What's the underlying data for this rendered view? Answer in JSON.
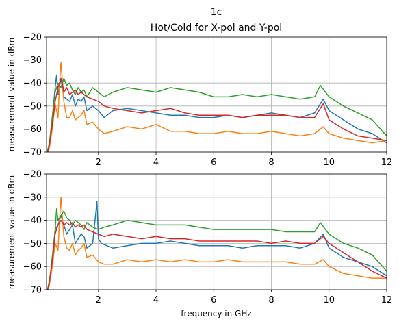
{
  "figure": {
    "title_line1": "1c",
    "title_line2": "Hot/Cold for X-pol and Y-pol",
    "xlabel": "frequency in GHz",
    "ylabel": "measurement value in dBm"
  },
  "chart_data": [
    {
      "type": "line",
      "title": "1c Hot/Cold for X-pol and Y-pol",
      "xlabel": "",
      "ylabel": "measurement value in dBm",
      "xlim": [
        0.2,
        12
      ],
      "ylim": [
        -70,
        -20
      ],
      "xticks": [
        2,
        4,
        6,
        8,
        10,
        12
      ],
      "yticks": [
        -70,
        -60,
        -50,
        -40,
        -30,
        -20
      ],
      "grid": true,
      "series": [
        {
          "color": "#1f77b4",
          "x": [
            0.2,
            0.3,
            0.4,
            0.5,
            0.55,
            0.6,
            0.7,
            0.8,
            0.9,
            1.0,
            1.1,
            1.2,
            1.3,
            1.4,
            1.5,
            1.6,
            1.8,
            2.0,
            2.2,
            2.5,
            3,
            3.5,
            4,
            4.5,
            5,
            5.5,
            6,
            6.5,
            7,
            7.5,
            8,
            8.5,
            9,
            9.5,
            9.8,
            10,
            10.5,
            11,
            11.5,
            12
          ],
          "y": [
            -72,
            -68,
            -55,
            -42,
            -36.5,
            -45,
            -38,
            -46,
            -47,
            -48,
            -45,
            -50,
            -47,
            -48,
            -46,
            -52,
            -50,
            -52,
            -55,
            -52,
            -51,
            -52,
            -53,
            -54,
            -54,
            -55,
            -55,
            -54,
            -55,
            -54,
            -53,
            -54,
            -55,
            -53,
            -47,
            -52,
            -56,
            -60,
            -62,
            -66
          ]
        },
        {
          "color": "#ff7f0e",
          "x": [
            0.2,
            0.3,
            0.4,
            0.5,
            0.6,
            0.65,
            0.7,
            0.8,
            0.9,
            1.0,
            1.1,
            1.2,
            1.3,
            1.4,
            1.5,
            1.6,
            1.8,
            2.0,
            2.2,
            2.5,
            3,
            3.5,
            4,
            4.5,
            5,
            5.5,
            6,
            6.5,
            7,
            7.5,
            8,
            8.5,
            9,
            9.5,
            9.8,
            10,
            10.5,
            11,
            11.5,
            12
          ],
          "y": [
            -72,
            -68,
            -60,
            -49,
            -55,
            -40,
            -31,
            -48,
            -55,
            -55,
            -52,
            -56,
            -55,
            -54,
            -52,
            -58,
            -57,
            -60,
            -62,
            -61,
            -59,
            -60,
            -58,
            -61,
            -61,
            -62,
            -62,
            -61,
            -62,
            -62,
            -61,
            -62,
            -63,
            -62,
            -59,
            -62,
            -64,
            -65,
            -66,
            -65
          ]
        },
        {
          "color": "#2ca02c",
          "x": [
            0.2,
            0.3,
            0.4,
            0.5,
            0.6,
            0.7,
            0.8,
            0.9,
            1.0,
            1.1,
            1.2,
            1.3,
            1.4,
            1.5,
            1.6,
            1.8,
            2.0,
            2.2,
            2.5,
            3,
            3.5,
            4,
            4.5,
            5,
            5.5,
            6,
            6.5,
            7,
            7.5,
            8,
            8.5,
            9,
            9.5,
            9.7,
            10,
            10.5,
            11,
            11.5,
            12
          ],
          "y": [
            -71,
            -66,
            -55,
            -44,
            -40,
            -42,
            -38,
            -41,
            -40,
            -43,
            -45,
            -42,
            -44,
            -43,
            -46,
            -42,
            -44,
            -46,
            -44,
            -42,
            -43,
            -44,
            -42,
            -43,
            -44,
            -46,
            -46,
            -45,
            -46,
            -45,
            -46,
            -47,
            -46,
            -41,
            -46,
            -50,
            -53,
            -56,
            -63
          ]
        },
        {
          "color": "#d62728",
          "x": [
            0.2,
            0.3,
            0.4,
            0.5,
            0.6,
            0.7,
            0.75,
            0.8,
            0.9,
            1.0,
            1.1,
            1.2,
            1.3,
            1.4,
            1.5,
            1.6,
            1.8,
            2.0,
            2.2,
            2.5,
            3,
            3.5,
            4,
            4.5,
            5,
            5.5,
            6,
            6.5,
            7,
            7.5,
            8,
            8.5,
            9,
            9.5,
            9.8,
            10,
            10.5,
            11,
            11.5,
            12
          ],
          "y": [
            -72,
            -67,
            -58,
            -48,
            -42,
            -38,
            -40,
            -44,
            -42,
            -45,
            -44,
            -43,
            -45,
            -44,
            -45,
            -46,
            -47,
            -48,
            -50,
            -51,
            -52,
            -53,
            -52,
            -51,
            -53,
            -54,
            -54,
            -54,
            -55,
            -54,
            -54,
            -54,
            -55,
            -55,
            -49,
            -56,
            -60,
            -63,
            -64,
            -65
          ]
        }
      ]
    },
    {
      "type": "line",
      "title": "",
      "xlabel": "frequency in GHz",
      "ylabel": "measurement value in dBm",
      "xlim": [
        0.2,
        12
      ],
      "ylim": [
        -70,
        -20
      ],
      "xticks": [
        2,
        4,
        6,
        8,
        10,
        12
      ],
      "yticks": [
        -70,
        -60,
        -50,
        -40,
        -30,
        -20
      ],
      "grid": true,
      "series": [
        {
          "color": "#1f77b4",
          "x": [
            0.2,
            0.3,
            0.4,
            0.5,
            0.6,
            0.7,
            0.8,
            0.9,
            1.0,
            1.1,
            1.2,
            1.3,
            1.4,
            1.5,
            1.6,
            1.8,
            1.95,
            2.0,
            2.1,
            2.5,
            3,
            3.5,
            4,
            4.5,
            5,
            5.5,
            6,
            6.5,
            7,
            7.5,
            8,
            8.5,
            9,
            9.5,
            9.8,
            10,
            10.5,
            11,
            11.5,
            12
          ],
          "y": [
            -72,
            -68,
            -56,
            -44,
            -42,
            -38,
            -42,
            -46,
            -44,
            -42,
            -50,
            -48,
            -46,
            -47,
            -52,
            -50,
            -32,
            -48,
            -50,
            -52,
            -51,
            -50,
            -50,
            -49,
            -50,
            -51,
            -51,
            -51,
            -52,
            -51,
            -51,
            -51,
            -52,
            -50,
            -46,
            -52,
            -56,
            -58,
            -60,
            -64
          ]
        },
        {
          "color": "#ff7f0e",
          "x": [
            0.2,
            0.3,
            0.4,
            0.5,
            0.6,
            0.65,
            0.7,
            0.8,
            0.9,
            1.0,
            1.1,
            1.2,
            1.3,
            1.4,
            1.5,
            1.6,
            1.8,
            2.0,
            2.2,
            2.5,
            3,
            3.5,
            4,
            4.5,
            5,
            5.5,
            6,
            6.5,
            7,
            7.5,
            8,
            8.5,
            9,
            9.5,
            9.8,
            10,
            10.5,
            11,
            11.5,
            12
          ],
          "y": [
            -72,
            -68,
            -60,
            -50,
            -53,
            -40,
            -30,
            -47,
            -52,
            -53,
            -50,
            -55,
            -53,
            -52,
            -50,
            -56,
            -55,
            -58,
            -59,
            -59,
            -57,
            -58,
            -57,
            -58,
            -57,
            -58,
            -58,
            -57,
            -58,
            -58,
            -58,
            -58,
            -59,
            -59,
            -57,
            -60,
            -63,
            -64,
            -65,
            -65
          ]
        },
        {
          "color": "#2ca02c",
          "x": [
            0.2,
            0.3,
            0.4,
            0.5,
            0.55,
            0.6,
            0.7,
            0.8,
            0.9,
            1.0,
            1.1,
            1.2,
            1.3,
            1.4,
            1.5,
            1.6,
            1.8,
            2.0,
            2.2,
            2.5,
            3,
            3.5,
            4,
            4.5,
            5,
            5.5,
            6,
            6.5,
            7,
            7.5,
            8,
            8.5,
            9,
            9.5,
            9.7,
            10,
            10.5,
            11,
            11.5,
            12
          ],
          "y": [
            -72,
            -67,
            -56,
            -44,
            -35,
            -40,
            -38,
            -36,
            -39,
            -40,
            -42,
            -40,
            -41,
            -42,
            -44,
            -41,
            -43,
            -44,
            -43,
            -42,
            -40,
            -41,
            -42,
            -42,
            -42,
            -43,
            -44,
            -44,
            -44,
            -44,
            -44,
            -45,
            -45,
            -45,
            -41,
            -46,
            -50,
            -52,
            -55,
            -62
          ]
        },
        {
          "color": "#d62728",
          "x": [
            0.2,
            0.3,
            0.4,
            0.5,
            0.6,
            0.7,
            0.8,
            0.9,
            1.0,
            1.1,
            1.2,
            1.3,
            1.4,
            1.5,
            1.6,
            1.8,
            2.0,
            2.2,
            2.5,
            3,
            3.5,
            4,
            4.5,
            5,
            5.5,
            6,
            6.5,
            7,
            7.5,
            8,
            8.5,
            9,
            9.5,
            9.8,
            10,
            10.5,
            11,
            11.5,
            12
          ],
          "y": [
            -72,
            -66,
            -58,
            -46,
            -42,
            -40,
            -42,
            -41,
            -42,
            -41,
            -43,
            -42,
            -43,
            -42,
            -44,
            -45,
            -46,
            -47,
            -46,
            -47,
            -48,
            -47,
            -48,
            -48,
            -49,
            -49,
            -49,
            -49,
            -49,
            -50,
            -49,
            -50,
            -50,
            -47,
            -50,
            -54,
            -58,
            -62,
            -65
          ]
        }
      ]
    }
  ]
}
